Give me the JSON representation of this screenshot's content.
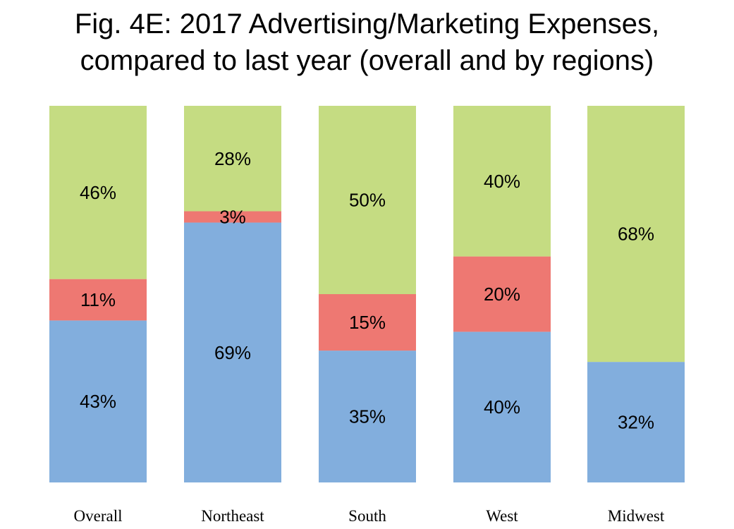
{
  "chart_data": {
    "type": "bar",
    "stacked": true,
    "percent_stacked": true,
    "title": [
      "Fig. 4E: 2017 Advertising/Marketing Expenses,",
      "compared to last year (overall and by regions)"
    ],
    "categories": [
      "Overall",
      "Northeast",
      "South",
      "West",
      "Midwest"
    ],
    "series": [
      {
        "values": [
          43,
          69,
          35,
          40,
          32
        ],
        "color": "#82aedd"
      },
      {
        "values": [
          11,
          3,
          15,
          20,
          0
        ],
        "color": "#ee7872"
      },
      {
        "values": [
          46,
          28,
          50,
          40,
          68
        ],
        "color": "#c5dc82"
      }
    ],
    "value_suffix": "%",
    "ylim": [
      0,
      100
    ],
    "grid": false,
    "legend": "none"
  }
}
